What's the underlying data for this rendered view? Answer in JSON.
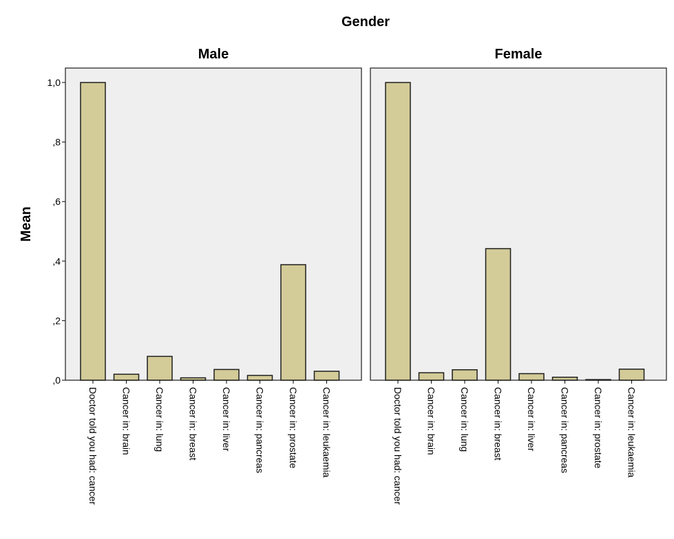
{
  "chart_data": {
    "type": "bar",
    "title": "Gender",
    "ylabel": "Mean",
    "ylim": [
      0,
      1.0
    ],
    "yticks": [
      {
        "value": 0.0,
        "label": ",0"
      },
      {
        "value": 0.2,
        "label": ",2"
      },
      {
        "value": 0.4,
        "label": ",4"
      },
      {
        "value": 0.6,
        "label": ",6"
      },
      {
        "value": 0.8,
        "label": ",8"
      },
      {
        "value": 1.0,
        "label": "1,0"
      }
    ],
    "categories": [
      "Doctor told you had: cancer",
      "Cancer in: brain",
      "Cancer in: lung",
      "Cancer in: breast",
      "Cancer in: liver",
      "Cancer in: pancreas",
      "Cancer in: prostate",
      "Cancer in: leukaemia"
    ],
    "bar_color": "#d3cb98",
    "background_color": "#efefef",
    "grid": false,
    "panels": [
      {
        "name": "Male",
        "values": [
          1.0,
          0.02,
          0.08,
          0.008,
          0.036,
          0.016,
          0.388,
          0.03
        ]
      },
      {
        "name": "Female",
        "values": [
          1.0,
          0.025,
          0.035,
          0.442,
          0.022,
          0.01,
          0.002,
          0.037
        ]
      }
    ]
  }
}
